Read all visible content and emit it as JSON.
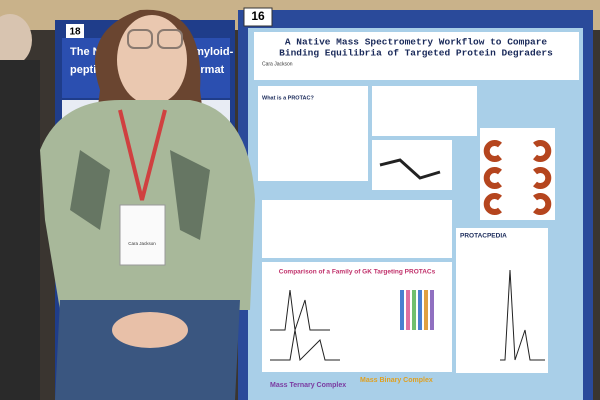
{
  "left_poster": {
    "number": "18",
    "title_lines": [
      "The N-term",
      "peptide is"
    ],
    "title_right": [
      "amyloid-",
      "format"
    ]
  },
  "badge": {
    "name": "Cara Jackson"
  },
  "poster": {
    "number": "16",
    "title_lines": [
      "A Native Mass Spectrometry Workflow to Compare",
      "Binding Equilibria of Targeted Protein Degraders"
    ],
    "author": "Cara Jackson",
    "box_heading": "What is a PROTAC?",
    "comparison_heading": "Comparison of a Family of GK Targeting PROTACs",
    "side_heading": "PROTACPEDIA",
    "bottom_left": "Mass Ternary Complex",
    "bottom_right": "Mass Binary Complex"
  }
}
